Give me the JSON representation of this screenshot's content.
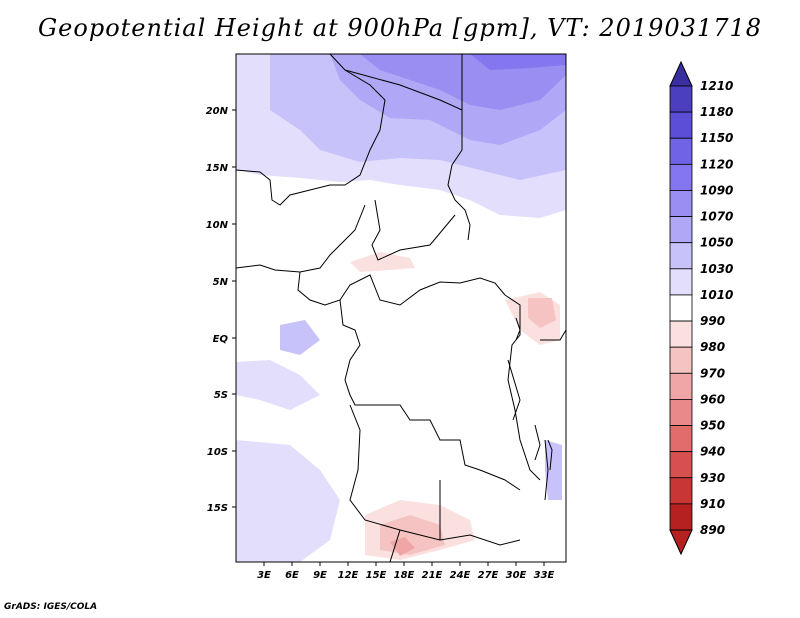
{
  "title": "Geopotential Height at 900hPa [gpm], VT: 2019031718",
  "footer": "GrADS: IGES/COLA",
  "map": {
    "lat_labels": [
      "20N",
      "15N",
      "10N",
      "5N",
      "EQ",
      "5S",
      "10S",
      "15S"
    ],
    "lon_labels": [
      "3E",
      "6E",
      "9E",
      "12E",
      "15E",
      "18E",
      "21E",
      "24E",
      "27E",
      "30E",
      "33E"
    ]
  },
  "colorbar": {
    "levels": [
      "1210",
      "1180",
      "1150",
      "1120",
      "1090",
      "1070",
      "1050",
      "1030",
      "1010",
      "990",
      "980",
      "970",
      "960",
      "950",
      "940",
      "930",
      "910",
      "890"
    ],
    "colors": [
      "#3a2fa0",
      "#4b3fc0",
      "#5a4fd6",
      "#6f63e6",
      "#8476ee",
      "#9a8ef2",
      "#b0a7f6",
      "#c8c2fa",
      "#e2defc",
      "#ffffff",
      "#fbe0e0",
      "#f6c3c3",
      "#f0a6a6",
      "#e98989",
      "#e06c6c",
      "#d65050",
      "#c93636",
      "#b52020"
    ]
  }
}
